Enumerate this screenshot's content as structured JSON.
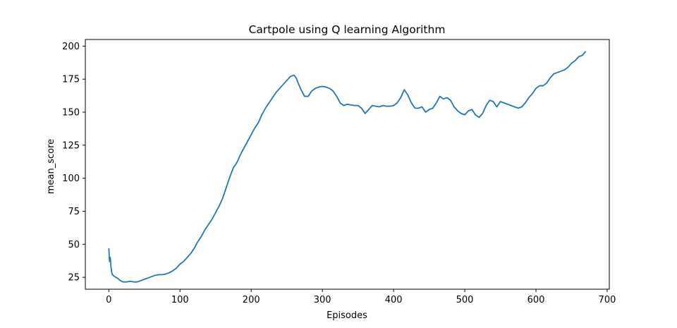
{
  "chart_data": {
    "type": "line",
    "title": "Cartpole using Q learning Algorithm",
    "xlabel": "Episodes",
    "ylabel": "mean_score",
    "xlim": [
      -33,
      703
    ],
    "ylim": [
      16,
      205
    ],
    "xticks": [
      0,
      100,
      200,
      300,
      400,
      500,
      600,
      700
    ],
    "yticks": [
      25,
      50,
      75,
      100,
      125,
      150,
      175,
      200
    ],
    "grid": false,
    "legend": "none",
    "series": [
      {
        "color": "#1f77b4",
        "x": [
          0,
          1,
          2,
          3,
          4,
          5,
          7,
          10,
          13,
          15,
          18,
          20,
          25,
          30,
          35,
          40,
          45,
          50,
          55,
          60,
          65,
          70,
          75,
          80,
          85,
          90,
          95,
          100,
          105,
          110,
          115,
          120,
          125,
          130,
          135,
          140,
          145,
          150,
          155,
          160,
          165,
          170,
          175,
          180,
          185,
          190,
          195,
          200,
          205,
          210,
          215,
          220,
          225,
          230,
          235,
          240,
          245,
          250,
          255,
          260,
          263,
          266,
          270,
          275,
          280,
          285,
          290,
          295,
          300,
          305,
          310,
          315,
          320,
          325,
          330,
          335,
          340,
          345,
          350,
          355,
          360,
          365,
          370,
          375,
          380,
          385,
          390,
          395,
          400,
          405,
          410,
          415,
          420,
          425,
          430,
          435,
          440,
          445,
          450,
          455,
          460,
          465,
          470,
          475,
          480,
          485,
          490,
          495,
          500,
          505,
          510,
          515,
          520,
          525,
          530,
          535,
          540,
          545,
          550,
          555,
          560,
          565,
          570,
          575,
          580,
          585,
          590,
          595,
          600,
          605,
          610,
          615,
          620,
          625,
          630,
          635,
          640,
          645,
          650,
          655,
          660,
          665,
          670
        ],
        "values": [
          47,
          37,
          40,
          33,
          29,
          27,
          26,
          25,
          24,
          23,
          22,
          21.5,
          21.5,
          22,
          21.5,
          21.5,
          22.5,
          23.5,
          24.5,
          25.5,
          26.5,
          27,
          27,
          27.5,
          28.5,
          30,
          32,
          35,
          37,
          40,
          43,
          47,
          52,
          56,
          61,
          65,
          69,
          74,
          79,
          85,
          93,
          101,
          108,
          112,
          118,
          123,
          128,
          133,
          138,
          142,
          148,
          153,
          157,
          161,
          165,
          168,
          171,
          174,
          177,
          178,
          176,
          172,
          167,
          162,
          162,
          166,
          168,
          169,
          169.5,
          169,
          168,
          166,
          162,
          157,
          155,
          156,
          155.5,
          155,
          155,
          153,
          149,
          152,
          155,
          154.5,
          154,
          155,
          154.5,
          154.5,
          155,
          157,
          161,
          167,
          163,
          157,
          153,
          153,
          154,
          150,
          152,
          153,
          157,
          162,
          160,
          161,
          159,
          154,
          151,
          149,
          148,
          151,
          152,
          148,
          146,
          149,
          155,
          159,
          158,
          154,
          158,
          157,
          156,
          155,
          154,
          153,
          154,
          157,
          161,
          164,
          168,
          170,
          170,
          172,
          176,
          179,
          180,
          181,
          182,
          184,
          187,
          189,
          192,
          193,
          196
        ]
      }
    ]
  }
}
